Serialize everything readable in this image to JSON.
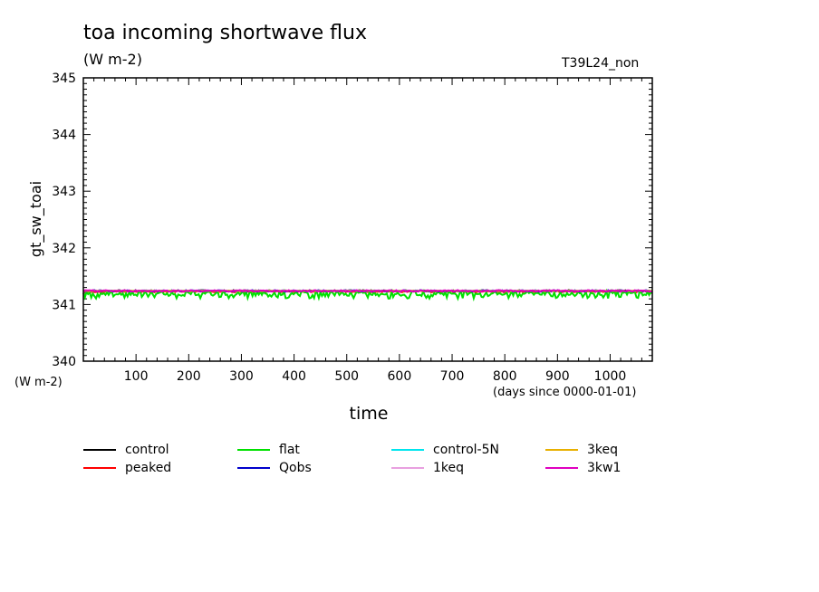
{
  "header": {
    "title": "toa incoming shortwave flux",
    "units": "(W m-2)",
    "run_label": "T39L24_non"
  },
  "chart_data": {
    "type": "line",
    "title": "toa incoming shortwave flux",
    "ylabel": "gt_sw_toai",
    "yunits": "(W m-2)",
    "xlabel": "time",
    "xunits": "(days since 0000-01-01)",
    "xlim": [
      0,
      1080
    ],
    "ylim": [
      340,
      345
    ],
    "xticks": [
      100,
      200,
      300,
      400,
      500,
      600,
      700,
      800,
      900,
      1000
    ],
    "yticks": [
      340,
      341,
      342,
      343,
      344,
      345
    ],
    "legend_placement": "bottom",
    "series": [
      {
        "name": "control",
        "color": "#000000",
        "x": [
          0,
          1080
        ],
        "y": [
          341.24,
          341.24
        ]
      },
      {
        "name": "peaked",
        "color": "#ff0000",
        "x": [
          0,
          1080
        ],
        "y": [
          341.23,
          341.23
        ]
      },
      {
        "name": "flat",
        "color": "#00e000",
        "x": [
          0,
          1080
        ],
        "y": [
          341.2,
          341.2
        ]
      },
      {
        "name": "Qobs",
        "color": "#0000cc",
        "x": [
          0,
          1080
        ],
        "y": [
          341.24,
          341.24
        ]
      },
      {
        "name": "control-5N",
        "color": "#00e5ee",
        "x": [
          0,
          1080
        ],
        "y": [
          341.24,
          341.24
        ]
      },
      {
        "name": "1keq",
        "color": "#e8a0e0",
        "x": [
          0,
          1080
        ],
        "y": [
          341.24,
          341.24
        ]
      },
      {
        "name": "3keq",
        "color": "#e8b000",
        "x": [
          0,
          1080
        ],
        "y": [
          341.24,
          341.24
        ]
      },
      {
        "name": "3kw1",
        "color": "#e000c0",
        "x": [
          0,
          1080
        ],
        "y": [
          341.24,
          341.24
        ]
      }
    ]
  }
}
